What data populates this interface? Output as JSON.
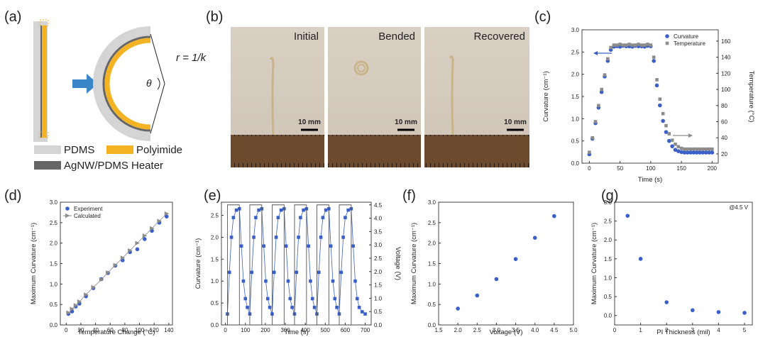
{
  "diagram": {
    "label": "(a)",
    "radius_label": "r = 1/k",
    "angle_label": "θ",
    "legend": [
      "PDMS",
      "Polyimide",
      "AgNW/PDMS Heater"
    ]
  },
  "photos": {
    "label": "(b)",
    "images": [
      {
        "caption": "Initial",
        "scale": "10 mm"
      },
      {
        "caption": "Bended",
        "scale": "10 mm"
      },
      {
        "caption": "Recovered",
        "scale": "10 mm"
      }
    ]
  },
  "chart_data": [
    {
      "type": "scatter",
      "label": "(c)",
      "xlabel": "Time (s)",
      "ylabel": "Curvature (cm⁻¹)",
      "y2label": "Temperature (°C)",
      "xlim": [
        -12,
        210
      ],
      "xticks": [
        0,
        50,
        100,
        150,
        200
      ],
      "ylim": [
        0,
        3.0
      ],
      "yticks": [
        {
          "value": 0,
          "label": "0.0"
        },
        0.5,
        {
          "value": 1,
          "label": "1.0"
        },
        1.5,
        {
          "value": 2,
          "label": "2.0"
        },
        2.5,
        {
          "value": 3,
          "label": "3.0"
        }
      ],
      "y2lim": [
        8.5,
        174
      ],
      "y2ticks": [
        20,
        40,
        60,
        80,
        100,
        120,
        140,
        160
      ],
      "legend": "upper right",
      "series": [
        {
          "name": "Curvature",
          "color": "#3a5fc8",
          "marker": "circle",
          "x": [
            0,
            5,
            10,
            15,
            20,
            25,
            30,
            35,
            40,
            45,
            50,
            55,
            60,
            65,
            70,
            75,
            80,
            85,
            90,
            95,
            100,
            105,
            110,
            115,
            120,
            125,
            130,
            135,
            140,
            145,
            150,
            155,
            160,
            165,
            170,
            175,
            180,
            185,
            190,
            195,
            200
          ],
          "values": [
            0.2,
            0.55,
            0.9,
            1.25,
            1.6,
            1.95,
            2.3,
            2.55,
            2.62,
            2.63,
            2.62,
            2.64,
            2.63,
            2.63,
            2.62,
            2.64,
            2.63,
            2.63,
            2.62,
            2.64,
            2.63,
            2.3,
            1.75,
            1.3,
            0.95,
            0.7,
            0.5,
            0.38,
            0.3,
            0.27,
            0.25,
            0.24,
            0.24,
            0.24,
            0.24,
            0.24,
            0.24,
            0.24,
            0.24,
            0.24,
            0.24
          ]
        },
        {
          "name": "Temperature",
          "color": "#8c8c8c",
          "marker": "square",
          "axis": "y2",
          "x": [
            0,
            5,
            10,
            15,
            20,
            25,
            30,
            35,
            40,
            45,
            50,
            55,
            60,
            65,
            70,
            75,
            80,
            85,
            90,
            95,
            100,
            105,
            110,
            115,
            120,
            125,
            130,
            135,
            140,
            145,
            150,
            155,
            160,
            165,
            170,
            175,
            180,
            185,
            190,
            195,
            200
          ],
          "values": [
            22,
            40,
            60,
            80,
            100,
            118,
            138,
            152,
            155,
            155,
            156,
            155,
            155,
            156,
            155,
            155,
            156,
            155,
            155,
            156,
            155,
            140,
            112,
            88,
            70,
            55,
            45,
            37,
            32,
            29,
            27,
            26,
            26,
            26,
            26,
            26,
            26,
            26,
            26,
            26,
            26
          ]
        }
      ]
    },
    {
      "type": "scatter",
      "label": "(d)",
      "xlabel": "Temperature Change (°C)",
      "ylabel": "Maximum Curvature (cm⁻¹)",
      "xlim": [
        -8,
        145
      ],
      "xticks": [
        0,
        20,
        40,
        60,
        80,
        100,
        120,
        140
      ],
      "ylim": [
        0,
        3.0
      ],
      "yticks": [
        {
          "value": 0,
          "label": "0.0"
        },
        0.5,
        {
          "value": 1,
          "label": "1.0"
        },
        1.5,
        {
          "value": 2,
          "label": "2.0"
        },
        2.5,
        {
          "value": 3,
          "label": "3.0"
        }
      ],
      "legend": "upper left",
      "series": [
        {
          "name": "Experiment",
          "color": "#3a5fc8",
          "marker": "circle",
          "x": [
            3,
            8,
            13,
            18,
            27,
            37,
            48,
            57,
            67,
            77,
            87,
            97,
            107,
            117,
            127,
            137
          ],
          "values": [
            0.27,
            0.33,
            0.45,
            0.52,
            0.7,
            0.9,
            1.12,
            1.27,
            1.45,
            1.58,
            1.78,
            1.85,
            2.1,
            2.3,
            2.5,
            2.65
          ]
        },
        {
          "name": "Calculated",
          "color": "#8c8c8c",
          "marker": "triangle",
          "line": true,
          "x": [
            3,
            8,
            13,
            18,
            27,
            37,
            48,
            57,
            67,
            77,
            87,
            97,
            107,
            117,
            127,
            137
          ],
          "values": [
            0.3,
            0.39,
            0.48,
            0.57,
            0.74,
            0.92,
            1.11,
            1.28,
            1.46,
            1.64,
            1.82,
            2.0,
            2.18,
            2.36,
            2.54,
            2.72
          ]
        }
      ]
    },
    {
      "type": "scatter",
      "label": "(e)",
      "xlabel": "Time (s)",
      "ylabel": "Curvature (cm⁻¹)",
      "y2label": "Voltage (V)",
      "xlim": [
        -20,
        730
      ],
      "xticks": [
        0,
        100,
        200,
        300,
        400,
        500,
        600,
        700
      ],
      "ylim": [
        0,
        2.8
      ],
      "yticks": [
        {
          "value": 0,
          "label": "0.0"
        },
        0.5,
        {
          "value": 1,
          "label": "1.0"
        },
        1.5,
        {
          "value": 2,
          "label": "2.0"
        },
        2.5
      ],
      "y2lim": [
        0,
        4.6
      ],
      "y2ticks": [
        {
          "value": 0,
          "label": "0.0"
        },
        0.5,
        {
          "value": 1,
          "label": "1.0"
        },
        1.5,
        {
          "value": 2,
          "label": "2.0"
        },
        2.5,
        {
          "value": 3,
          "label": "3.0"
        },
        3.5,
        {
          "value": 4,
          "label": "4.0"
        },
        4.5
      ],
      "series": [
        {
          "color": "#3a5fc8",
          "marker": "square",
          "line": true,
          "x": [
            10,
            20,
            30,
            40,
            55,
            70,
            80,
            90,
            100,
            110,
            122,
            132,
            142,
            152,
            167,
            182,
            192,
            202,
            212,
            222,
            234,
            244,
            254,
            264,
            279,
            294,
            304,
            314,
            324,
            334,
            346,
            356,
            366,
            376,
            391,
            406,
            416,
            426,
            436,
            446,
            458,
            468,
            478,
            488,
            503,
            518,
            528,
            538,
            548,
            558,
            570,
            580,
            590,
            600,
            615,
            630,
            640,
            650,
            660,
            670,
            685,
            700
          ],
          "values": [
            0.25,
            1.2,
            2.0,
            2.45,
            2.62,
            2.65,
            1.8,
            1.0,
            0.6,
            0.4,
            0.25,
            1.2,
            2.0,
            2.45,
            2.62,
            2.65,
            1.8,
            1.0,
            0.6,
            0.4,
            0.25,
            1.2,
            2.0,
            2.45,
            2.62,
            2.65,
            1.8,
            1.0,
            0.6,
            0.4,
            0.25,
            1.2,
            2.0,
            2.45,
            2.62,
            2.65,
            1.8,
            1.0,
            0.6,
            0.4,
            0.25,
            1.2,
            2.0,
            2.45,
            2.62,
            2.65,
            1.8,
            1.0,
            0.6,
            0.4,
            0.25,
            1.2,
            2.0,
            2.45,
            2.62,
            2.65,
            1.8,
            1.0,
            0.6,
            0.4,
            0.3,
            0.25
          ]
        },
        {
          "color": "#555555",
          "marker": "none",
          "line": true,
          "axis": "y2",
          "x": [
            10,
            10,
            70,
            70,
            122,
            122,
            182,
            182,
            234,
            234,
            294,
            294,
            346,
            346,
            406,
            406,
            458,
            458,
            518,
            518,
            570,
            570,
            630,
            630
          ],
          "values": [
            0,
            4.5,
            4.5,
            0,
            0,
            4.5,
            4.5,
            0,
            0,
            4.5,
            4.5,
            0,
            0,
            4.5,
            4.5,
            0,
            0,
            4.5,
            4.5,
            0,
            0,
            4.5,
            4.5,
            0
          ]
        }
      ]
    },
    {
      "type": "scatter",
      "label": "(f)",
      "xlabel": "Voltage (V)",
      "ylabel": "Maximum Curvature (cm⁻¹)",
      "xlim": [
        1.5,
        5.0
      ],
      "xticks": [
        1.5,
        {
          "value": 2,
          "label": "2.0"
        },
        2.5,
        {
          "value": 3,
          "label": "3.0"
        },
        3.5,
        {
          "value": 4,
          "label": "4.0"
        },
        4.5,
        {
          "value": 5,
          "label": "5.0"
        }
      ],
      "ylim": [
        0,
        3.0
      ],
      "yticks": [
        {
          "value": 0,
          "label": "0.0"
        },
        0.5,
        {
          "value": 1,
          "label": "1.0"
        },
        1.5,
        {
          "value": 2,
          "label": "2.0"
        },
        2.5,
        {
          "value": 3,
          "label": "3.0"
        }
      ],
      "series": [
        {
          "color": "#3a5fc8",
          "marker": "circle",
          "x": [
            2.0,
            2.5,
            3.0,
            3.5,
            4.0,
            4.5
          ],
          "values": [
            0.4,
            0.72,
            1.12,
            1.61,
            2.13,
            2.66
          ]
        }
      ]
    },
    {
      "type": "scatter",
      "label": "(g)",
      "xlabel": "PI Thickness (mil)",
      "ylabel": "Maximum Curvature (cm⁻¹)",
      "annotation": "@4.5 V",
      "xlim": [
        0,
        5.3
      ],
      "xticks": [
        0,
        1,
        2,
        3,
        4,
        5
      ],
      "ylim": [
        -0.25,
        3.0
      ],
      "yticks": [
        {
          "value": 0,
          "label": "0.0"
        },
        0.5,
        {
          "value": 1,
          "label": "1.0"
        },
        1.5,
        {
          "value": 2,
          "label": "2.0"
        },
        2.5,
        {
          "value": 3,
          "label": "3.0"
        }
      ],
      "series": [
        {
          "color": "#3a5fc8",
          "marker": "circle",
          "x": [
            0.5,
            1,
            2,
            3,
            4,
            5
          ],
          "values": [
            2.64,
            1.5,
            0.35,
            0.14,
            0.09,
            0.07
          ]
        }
      ]
    }
  ]
}
